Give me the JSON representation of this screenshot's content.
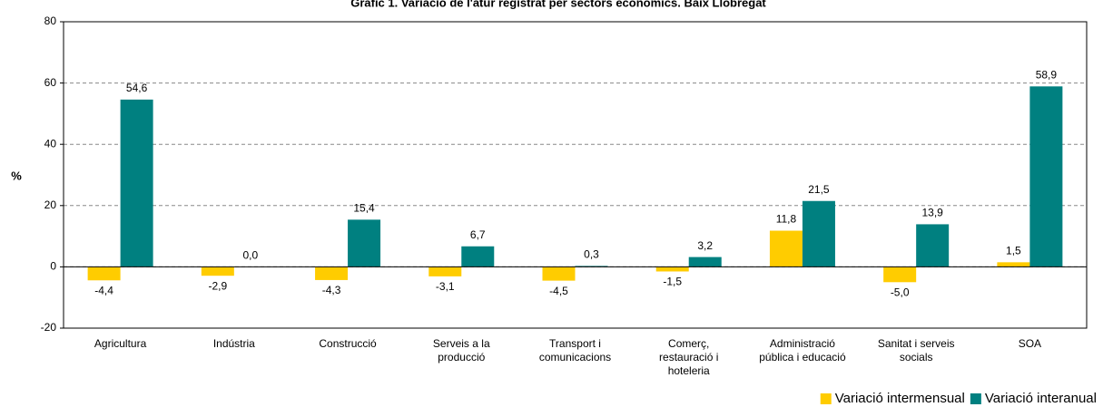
{
  "chart_data": {
    "type": "bar",
    "title": "Gràfic 1. Variació de l'atur registrat per sectors econòmics. Baix Llobregat",
    "y_label": "%",
    "categories": [
      "Agricultura",
      "Indústria",
      "Construcció",
      "Serveis a la\nproducció",
      "Transport i\ncomunicacions",
      "Comerç,\nrestauració i\nhoteleria",
      "Administració\npública i educació",
      "Sanitat i serveis\nsocials",
      "SOA"
    ],
    "series": [
      {
        "name": "Variació intermensual",
        "color": "#FFCC00",
        "values": [
          -4.4,
          -2.9,
          -4.3,
          -3.1,
          -4.5,
          -1.5,
          11.8,
          -5.0,
          1.5
        ],
        "value_labels": [
          "-4,4",
          "-2,9",
          "-4,3",
          "-3,1",
          "-4,5",
          "-1,5",
          "11,8",
          "-5,0",
          "1,5"
        ]
      },
      {
        "name": "Variació interanual",
        "color": "#008080",
        "values": [
          54.6,
          0.0,
          15.4,
          6.7,
          0.3,
          3.2,
          21.5,
          13.9,
          58.9
        ],
        "value_labels": [
          "54,6",
          "0,0",
          "15,4",
          "6,7",
          "0,3",
          "3,2",
          "21,5",
          "13,9",
          "58,9"
        ]
      }
    ],
    "ylim": [
      -20,
      80
    ],
    "yticks": [
      -20,
      0,
      20,
      40,
      60,
      80
    ],
    "grid": true,
    "legend": "bottom-right"
  }
}
